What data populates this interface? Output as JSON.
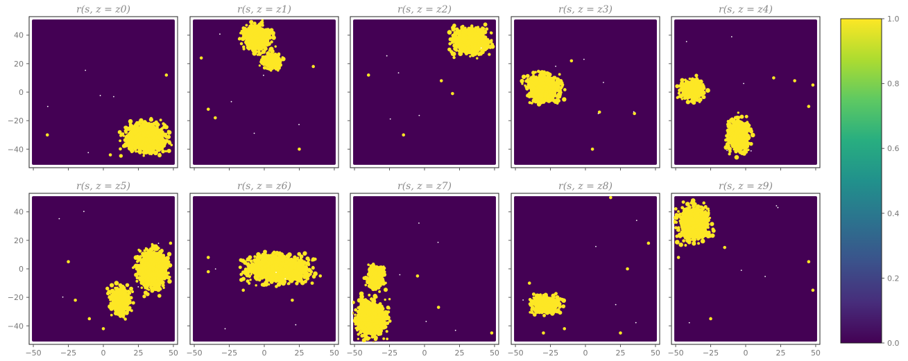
{
  "chart_data": {
    "type": "scatter",
    "layout": "2x5 grid of small-multiple scatter panels with shared axes and one colorbar",
    "panel_titles": [
      "r(s, z = z0)",
      "r(s, z = z1)",
      "r(s, z = z2)",
      "r(s, z = z3)",
      "r(s, z = z4)",
      "r(s, z = z5)",
      "r(s, z = z6)",
      "r(s, z = z7)",
      "r(s, z = z8)",
      "r(s, z = z9)"
    ],
    "title_subscripts": [
      "0",
      "1",
      "2",
      "3",
      "4",
      "5",
      "6",
      "7",
      "8",
      "9"
    ],
    "xlim": [
      -53,
      53
    ],
    "ylim": [
      -53,
      53
    ],
    "xticks": [
      -50,
      -25,
      0,
      25,
      50
    ],
    "xtick_labels": [
      "−50",
      "−25",
      "0",
      "25",
      "50"
    ],
    "yticks": [
      -40,
      -20,
      0,
      20,
      40
    ],
    "ytick_labels": [
      "−40",
      "−20",
      "0",
      "20",
      "40"
    ],
    "data_extent": {
      "x": [
        -50,
        50
      ],
      "y": [
        -50,
        50
      ]
    },
    "value_range": [
      0.0,
      1.0
    ],
    "background_value": 0.0,
    "highlight_value": 1.0,
    "colormap": "viridis",
    "colors": {
      "low": "#440154",
      "mid": "#21918c",
      "high": "#fde725"
    },
    "colorbar": {
      "ticks": [
        0.0,
        0.2,
        0.4,
        0.6,
        0.8,
        1.0
      ],
      "tick_labels": [
        "0.0",
        "0.2",
        "0.4",
        "0.6",
        "0.8",
        "1.0"
      ]
    },
    "panels": [
      {
        "name": "z0",
        "clusters": [
          {
            "cx": 30,
            "cy": -32,
            "rx": 20,
            "ry": 14
          }
        ],
        "strays": [
          [
            -40,
            -30
          ],
          [
            45,
            12
          ],
          [
            5,
            -44
          ]
        ]
      },
      {
        "name": "z1",
        "clusters": [
          {
            "cx": -5,
            "cy": 38,
            "rx": 14,
            "ry": 13
          },
          {
            "cx": 5,
            "cy": 22,
            "rx": 10,
            "ry": 8
          }
        ],
        "strays": [
          [
            -40,
            -12
          ],
          [
            -35,
            -18
          ],
          [
            35,
            18
          ],
          [
            25,
            -40
          ],
          [
            -45,
            24
          ]
        ]
      },
      {
        "name": "z2",
        "clusters": [
          {
            "cx": 33,
            "cy": 36,
            "rx": 17,
            "ry": 14
          }
        ],
        "strays": [
          [
            -40,
            12
          ],
          [
            20,
            -1
          ],
          [
            12,
            8
          ],
          [
            -15,
            -30
          ]
        ]
      },
      {
        "name": "z3",
        "clusters": [
          {
            "cx": -30,
            "cy": 3,
            "rx": 16,
            "ry": 14
          }
        ],
        "strays": [
          [
            10,
            -14
          ],
          [
            35,
            -15
          ],
          [
            -10,
            22
          ],
          [
            5,
            -40
          ]
        ]
      },
      {
        "name": "z4",
        "clusters": [
          {
            "cx": -38,
            "cy": 2,
            "rx": 12,
            "ry": 10
          },
          {
            "cx": -5,
            "cy": -30,
            "rx": 11,
            "ry": 17
          }
        ],
        "strays": [
          [
            48,
            5
          ],
          [
            35,
            8
          ],
          [
            45,
            -10
          ],
          [
            20,
            10
          ]
        ]
      },
      {
        "name": "z5",
        "clusters": [
          {
            "cx": 12,
            "cy": -22,
            "rx": 10,
            "ry": 14
          },
          {
            "cx": 35,
            "cy": 0,
            "rx": 15,
            "ry": 20
          }
        ],
        "strays": [
          [
            -20,
            -22
          ],
          [
            -25,
            5
          ],
          [
            -10,
            -35
          ],
          [
            0,
            -42
          ],
          [
            48,
            18
          ]
        ]
      },
      {
        "name": "z6",
        "clusters": [
          {
            "cx": 10,
            "cy": 0,
            "rx": 30,
            "ry": 13
          }
        ],
        "strays": [
          [
            -40,
            -2
          ],
          [
            -40,
            8
          ],
          [
            20,
            -22
          ],
          [
            -15,
            -15
          ],
          [
            40,
            -5
          ]
        ]
      },
      {
        "name": "z7",
        "clusters": [
          {
            "cx": -38,
            "cy": -35,
            "rx": 16,
            "ry": 18
          },
          {
            "cx": -35,
            "cy": -6,
            "rx": 8,
            "ry": 12
          }
        ],
        "strays": [
          [
            10,
            -27
          ],
          [
            -5,
            -5
          ],
          [
            48,
            -45
          ]
        ]
      },
      {
        "name": "z8",
        "clusters": [
          {
            "cx": -28,
            "cy": -25,
            "rx": 14,
            "ry": 9
          }
        ],
        "strays": [
          [
            -30,
            -45
          ],
          [
            -15,
            -42
          ],
          [
            18,
            50
          ],
          [
            30,
            0
          ],
          [
            45,
            18
          ],
          [
            25,
            -45
          ],
          [
            -40,
            -10
          ]
        ]
      },
      {
        "name": "z9",
        "clusters": [
          {
            "cx": -37,
            "cy": 32,
            "rx": 16,
            "ry": 17
          }
        ],
        "strays": [
          [
            -15,
            15
          ],
          [
            -48,
            8
          ],
          [
            48,
            -15
          ],
          [
            45,
            5
          ],
          [
            -25,
            -35
          ]
        ]
      }
    ]
  }
}
